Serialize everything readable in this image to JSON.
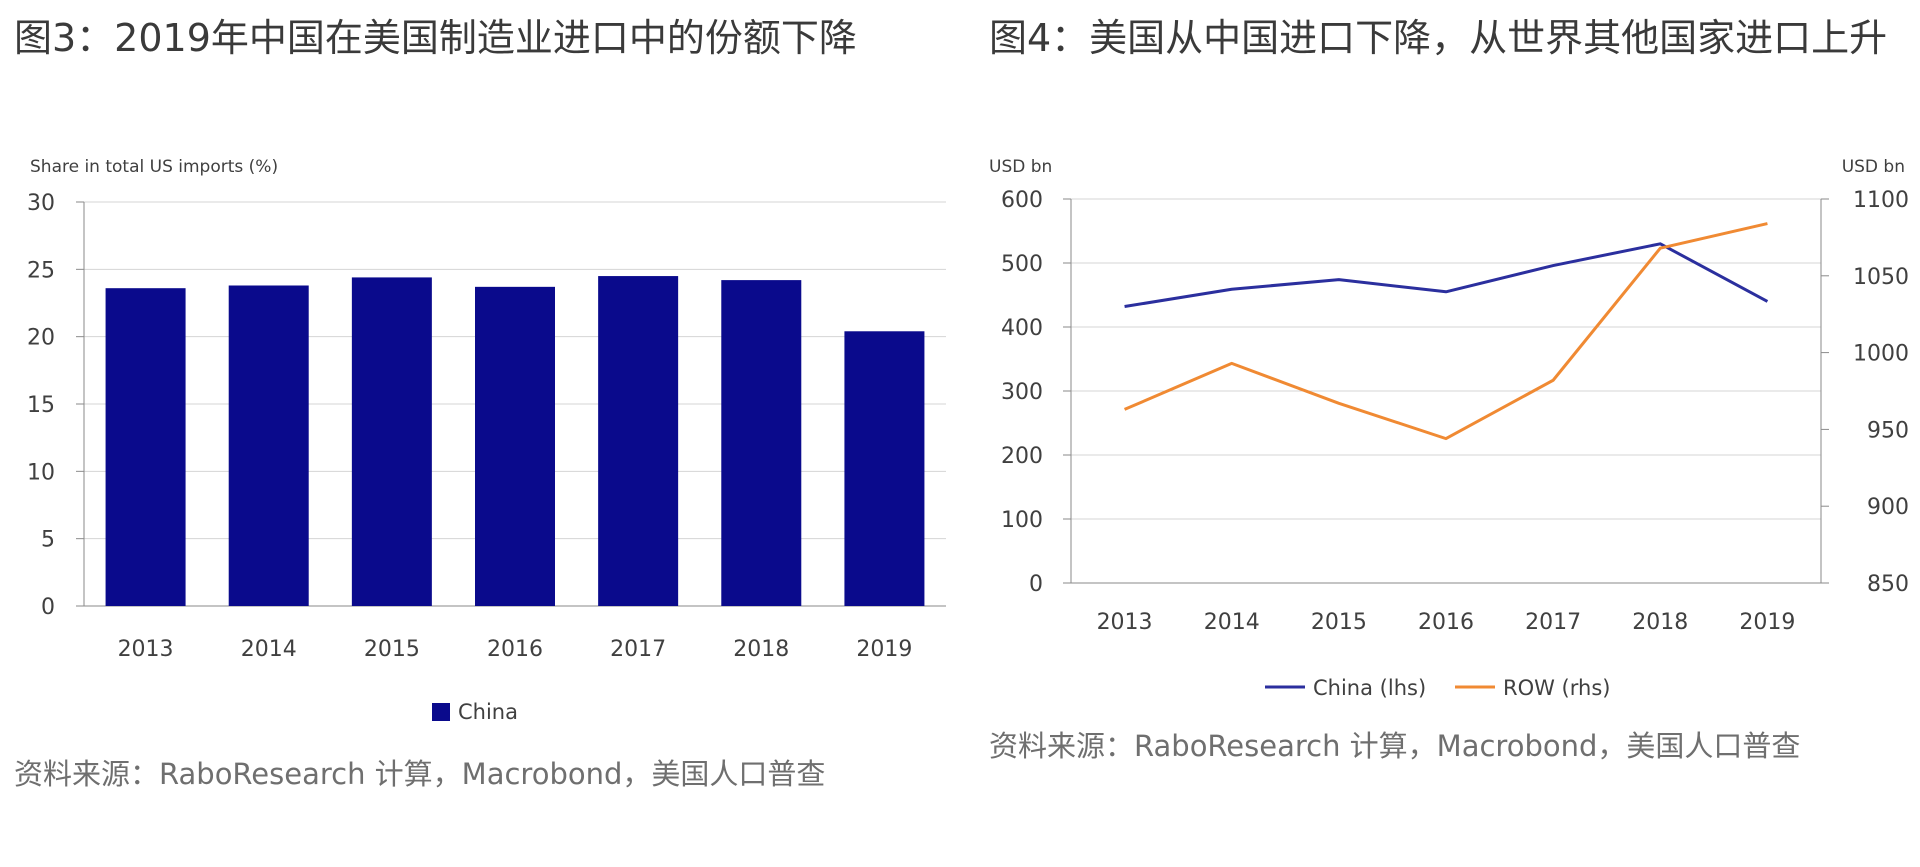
{
  "figures": [
    {
      "title": "图3：2019年中国在美国制造业进口中的份额下降",
      "source": "资料来源：RaboResearch 计算，Macrobond，美国人口普查"
    },
    {
      "title": "图4：美国从中国进口下降，从世界其他国家进口上升",
      "source": "资料来源：RaboResearch 计算，Macrobond，美国人口普查"
    }
  ],
  "chart_data": [
    {
      "type": "bar",
      "title": "图3：2019年中国在美国制造业进口中的份额下降",
      "ylabel": "Share in total US imports (%)",
      "xlabel": "",
      "categories": [
        "2013",
        "2014",
        "2015",
        "2016",
        "2017",
        "2018",
        "2019"
      ],
      "series": [
        {
          "name": "China",
          "values": [
            23.6,
            23.8,
            24.4,
            23.7,
            24.5,
            24.2,
            20.4
          ]
        }
      ],
      "ylim": [
        0,
        30
      ],
      "yticks": [
        0,
        5,
        10,
        15,
        20,
        25,
        30
      ],
      "grid": true,
      "legend": "bottom-center",
      "colors": {
        "China": "#0a0a8c"
      }
    },
    {
      "type": "line",
      "title": "图4：美国从中国进口下降，从世界其他国家进口上升",
      "ylabel_left": "USD bn",
      "ylabel_right": "USD bn",
      "categories": [
        "2013",
        "2014",
        "2015",
        "2016",
        "2017",
        "2018",
        "2019"
      ],
      "series": [
        {
          "name": "China (lhs)",
          "axis": "left",
          "values": [
            432,
            459,
            474,
            455,
            496,
            530,
            440
          ]
        },
        {
          "name": "ROW (rhs)",
          "axis": "right",
          "values": [
            963,
            993,
            967,
            944,
            982,
            1068,
            1084
          ]
        }
      ],
      "ylim_left": [
        0,
        600
      ],
      "yticks_left": [
        0,
        100,
        200,
        300,
        400,
        500,
        600
      ],
      "ylim_right": [
        850,
        1100
      ],
      "yticks_right": [
        850,
        900,
        950,
        1000,
        1050,
        1100
      ],
      "grid": true,
      "legend": "bottom-center",
      "colors": {
        "China (lhs)": "#2b2f9e",
        "ROW (rhs)": "#f08a33"
      }
    }
  ]
}
